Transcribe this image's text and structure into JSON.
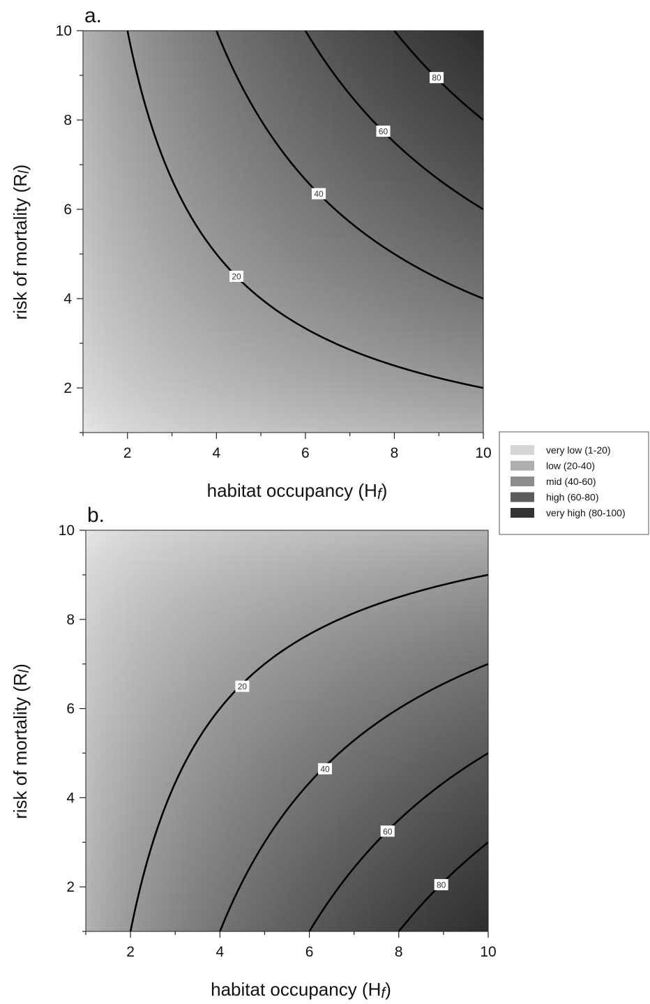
{
  "chart_data": [
    {
      "type": "heatmap",
      "panel_label": "a.",
      "xlabel": "habitat occupancy (H",
      "xlabel_sub": "f",
      "xlabel_close": ")",
      "ylabel": "risk of mortality (R",
      "ylabel_sub": "l",
      "ylabel_close": ")",
      "xlim": [
        1,
        10
      ],
      "ylim": [
        1,
        10
      ],
      "xticks": [
        2,
        4,
        6,
        8,
        10
      ],
      "xtick_labels": [
        "2",
        "4",
        "6",
        "8",
        "10"
      ],
      "yticks": [
        2,
        4,
        6,
        8,
        10
      ],
      "ytick_labels": [
        "2",
        "4",
        "6",
        "8",
        "10"
      ],
      "surface": "value = x * y",
      "gradient_darkens_toward": "top-right",
      "contours": [
        {
          "level": 20,
          "label": "20",
          "label_at": [
            4.45,
            4.5
          ]
        },
        {
          "level": 40,
          "label": "40",
          "label_at": [
            6.3,
            6.35
          ]
        },
        {
          "level": 60,
          "label": "60",
          "label_at": [
            7.75,
            7.75
          ]
        },
        {
          "level": 80,
          "label": "80",
          "label_at": [
            8.95,
            8.95
          ]
        }
      ]
    },
    {
      "type": "heatmap",
      "panel_label": "b.",
      "xlabel": "habitat occupancy (H",
      "xlabel_sub": "f",
      "xlabel_close": ")",
      "ylabel": "risk of mortality (R",
      "ylabel_sub": "l",
      "ylabel_close": ")",
      "xlim": [
        1,
        10
      ],
      "ylim": [
        1,
        10
      ],
      "xticks": [
        2,
        4,
        6,
        8,
        10
      ],
      "xtick_labels": [
        "2",
        "4",
        "6",
        "8",
        "10"
      ],
      "yticks": [
        2,
        4,
        6,
        8,
        10
      ],
      "ytick_labels": [
        "2",
        "4",
        "6",
        "8",
        "10"
      ],
      "surface": "value = x * (11 - y)",
      "gradient_darkens_toward": "bottom-right",
      "contours": [
        {
          "level": 20,
          "label": "20",
          "label_at": [
            4.5,
            6.5
          ]
        },
        {
          "level": 40,
          "label": "40",
          "label_at": [
            6.35,
            4.65
          ]
        },
        {
          "level": 60,
          "label": "60",
          "label_at": [
            7.75,
            3.25
          ]
        },
        {
          "level": 80,
          "label": "80",
          "label_at": [
            8.95,
            2.05
          ]
        }
      ]
    }
  ],
  "legend": {
    "placement": "right, between panels",
    "items": [
      {
        "label": "very low (1-20)",
        "color": "#d6d6d6"
      },
      {
        "label": "low (20-40)",
        "color": "#aeaeae"
      },
      {
        "label": "mid (40-60)",
        "color": "#8c8c8c"
      },
      {
        "label": "high (60-80)",
        "color": "#5c5c5c"
      },
      {
        "label": "very high (80-100)",
        "color": "#333333"
      }
    ]
  },
  "colors": {
    "lowest": "#ececec",
    "highest": "#2e2e2e",
    "contour_line": "#000000"
  }
}
